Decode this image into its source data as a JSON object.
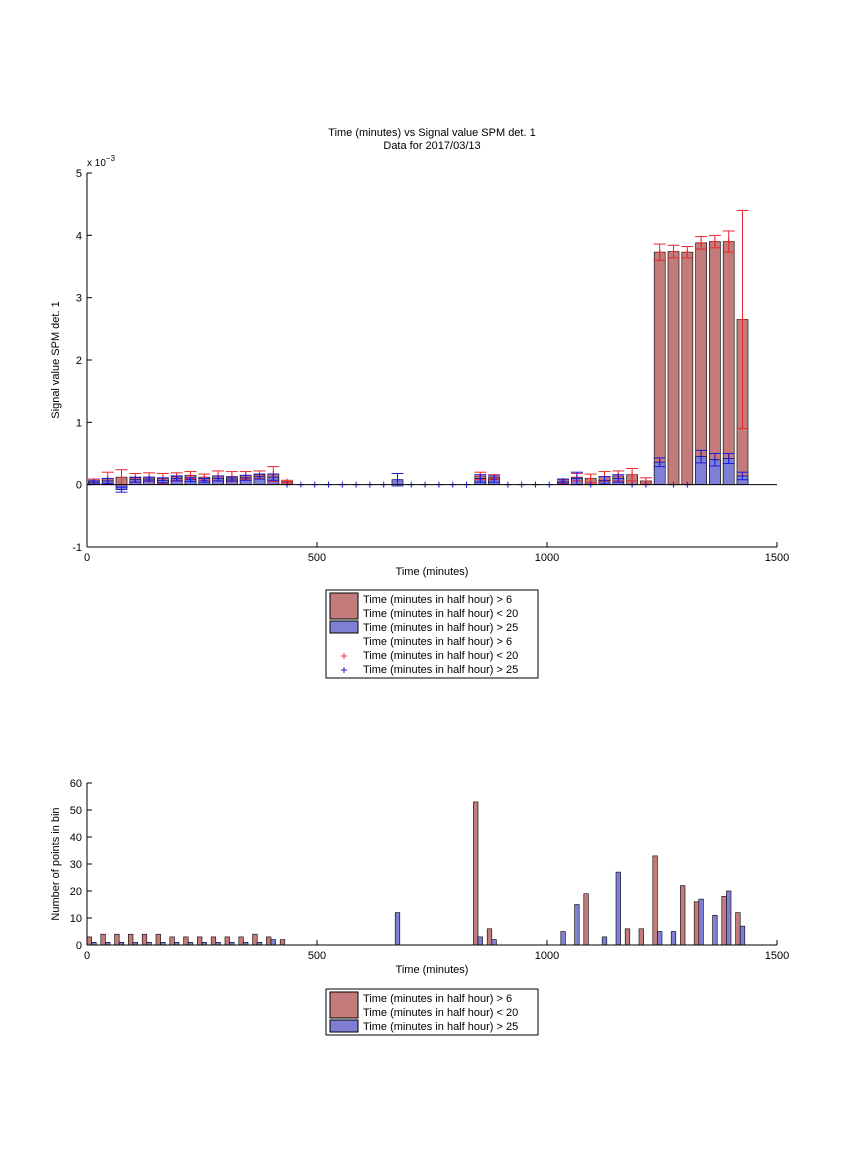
{
  "chart_data": [
    {
      "type": "bar",
      "title": "Time (minutes) vs Signal value SPM det. 1",
      "subtitle": "Data for 2017/03/13",
      "xlabel": "Time (minutes)",
      "ylabel": "Signal value SPM det. 1",
      "y_exponent_label": "x 10",
      "y_exponent_power": "−3",
      "xlim": [
        0,
        1500
      ],
      "ylim": [
        -1,
        5
      ],
      "xticks": [
        0,
        500,
        1000,
        1500
      ],
      "yticks": [
        -1,
        0,
        1,
        2,
        3,
        4,
        5
      ],
      "bar_width": 24,
      "legend_position": "below",
      "series": [
        {
          "name": "Time (minutes in half hour) > 6 Time (minutes in half hour) < 20",
          "color": "#c47b7b",
          "errcolor": "#e8262b",
          "x": [
            15,
            45,
            75,
            105,
            135,
            165,
            195,
            225,
            255,
            285,
            315,
            345,
            375,
            405,
            435,
            855,
            885,
            1035,
            1065,
            1095,
            1125,
            1155,
            1185,
            1215,
            1245,
            1275,
            1305,
            1335,
            1365,
            1395,
            1425
          ],
          "y": [
            0.05,
            0.1,
            0.12,
            0.11,
            0.12,
            0.1,
            0.13,
            0.15,
            0.12,
            0.14,
            0.13,
            0.15,
            0.16,
            0.17,
            0.05,
            0.14,
            0.12,
            0.05,
            0.12,
            0.1,
            0.13,
            0.14,
            0.16,
            0.06,
            3.73,
            3.74,
            3.73,
            3.88,
            3.9,
            3.9,
            2.65
          ],
          "err": [
            0.04,
            0.1,
            0.12,
            0.07,
            0.07,
            0.08,
            0.06,
            0.06,
            0.05,
            0.08,
            0.08,
            0.06,
            0.06,
            0.12,
            0.02,
            0.06,
            0.04,
            0.03,
            0.06,
            0.07,
            0.08,
            0.08,
            0.1,
            0.05,
            0.13,
            0.1,
            0.09,
            0.1,
            0.1,
            0.17,
            1.75
          ]
        },
        {
          "name": "Time (minutes in half hour) > 25",
          "color": "#7f7fd6",
          "errcolor": "#1a1adb",
          "x": [
            15,
            45,
            75,
            105,
            135,
            165,
            195,
            225,
            255,
            285,
            315,
            345,
            375,
            405,
            435,
            465,
            495,
            525,
            555,
            585,
            615,
            645,
            675,
            705,
            735,
            765,
            795,
            825,
            855,
            885,
            915,
            945,
            975,
            1005,
            1035,
            1065,
            1095,
            1125,
            1155,
            1185,
            1215,
            1245,
            1275,
            1305,
            1335,
            1365,
            1395,
            1425
          ],
          "y": [
            0.04,
            0.06,
            -0.08,
            0.08,
            0.09,
            0.07,
            0.1,
            0.08,
            0.07,
            0.1,
            0.09,
            0.11,
            0.13,
            0.12,
            0,
            0,
            0,
            0,
            0,
            0,
            0,
            0,
            0.08,
            0,
            0,
            0,
            0,
            0,
            0.1,
            0.09,
            0,
            0,
            0,
            0,
            0.06,
            0.1,
            0,
            0.07,
            0.1,
            0,
            0,
            0.36,
            0,
            0,
            0.45,
            0.4,
            0.42,
            0.14
          ],
          "err": [
            0.03,
            0.04,
            0.04,
            0.04,
            0.03,
            0.04,
            0.04,
            0.03,
            0.03,
            0.04,
            0.03,
            0.04,
            0.04,
            0.05,
            0,
            0,
            0,
            0,
            0,
            0,
            0,
            0,
            0.1,
            0,
            0,
            0,
            0,
            0,
            0.06,
            0.05,
            0,
            0,
            0,
            0,
            0.03,
            0.1,
            0,
            0.06,
            0.06,
            0,
            0,
            0.07,
            0,
            0,
            0.1,
            0.1,
            0.08,
            0.06
          ]
        }
      ],
      "legend_entries": [
        "Time (minutes in half hour) > 6",
        "Time (minutes in half hour) < 20",
        "Time (minutes in half hour) > 25",
        "Time (minutes in half hour) > 6",
        "Time (minutes in half hour) < 20",
        "Time (minutes in half hour) > 25"
      ]
    },
    {
      "type": "bar",
      "xlabel": "Time (minutes)",
      "ylabel": "Number of points in bin",
      "xlim": [
        0,
        1500
      ],
      "ylim": [
        0,
        60
      ],
      "xticks": [
        0,
        500,
        1000,
        1500
      ],
      "yticks": [
        0,
        10,
        20,
        30,
        40,
        50,
        60
      ],
      "bar_width": 10,
      "legend_position": "below",
      "series": [
        {
          "name": "Time (minutes in half hour) > 6 Time (minutes in half hour) < 20",
          "color": "#c47b7b",
          "x": [
            5,
            35,
            65,
            95,
            125,
            155,
            185,
            215,
            245,
            275,
            305,
            335,
            365,
            395,
            425,
            845,
            875,
            1085,
            1175,
            1205,
            1235,
            1295,
            1325,
            1385,
            1415
          ],
          "y": [
            3,
            4,
            4,
            4,
            4,
            4,
            3,
            3,
            3,
            3,
            3,
            3,
            4,
            3,
            2,
            53,
            6,
            19,
            6,
            6,
            33,
            22,
            16,
            18,
            12
          ]
        },
        {
          "name": "Time (minutes in half hour) > 25",
          "color": "#7f7fd6",
          "x": [
            15,
            45,
            75,
            105,
            135,
            165,
            195,
            225,
            255,
            285,
            315,
            345,
            375,
            405,
            675,
            855,
            885,
            1035,
            1065,
            1125,
            1155,
            1245,
            1275,
            1335,
            1365,
            1395,
            1425
          ],
          "y": [
            1,
            1,
            1,
            1,
            1,
            1,
            1,
            1,
            1,
            1,
            1,
            1,
            1,
            2,
            12,
            3,
            2,
            5,
            15,
            3,
            27,
            5,
            5,
            17,
            11,
            20,
            7
          ]
        }
      ],
      "legend_entries": [
        "Time (minutes in half hour) > 6",
        "Time (minutes in half hour) < 20",
        "Time (minutes in half hour) > 25"
      ]
    }
  ]
}
